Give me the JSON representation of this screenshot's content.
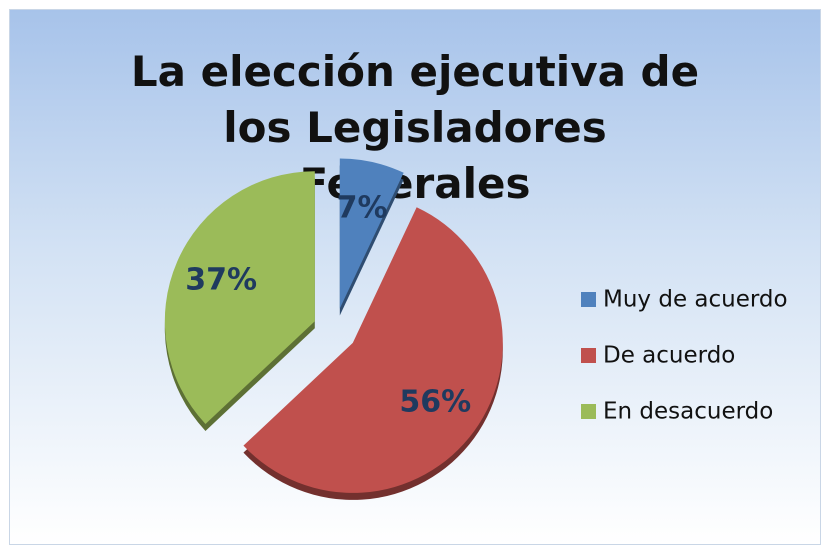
{
  "chart_data": {
    "type": "pie",
    "title": "La elección ejecutiva de los Legisladores Federales",
    "categories": [
      "Muy de acuerdo",
      "De acuerdo",
      "En desacuerdo"
    ],
    "values": [
      7,
      56,
      37
    ],
    "value_labels": [
      "7%",
      "56%",
      "37%"
    ],
    "colors": [
      "#4f81bd",
      "#c0504d",
      "#9bbb59"
    ],
    "legend": "right"
  }
}
